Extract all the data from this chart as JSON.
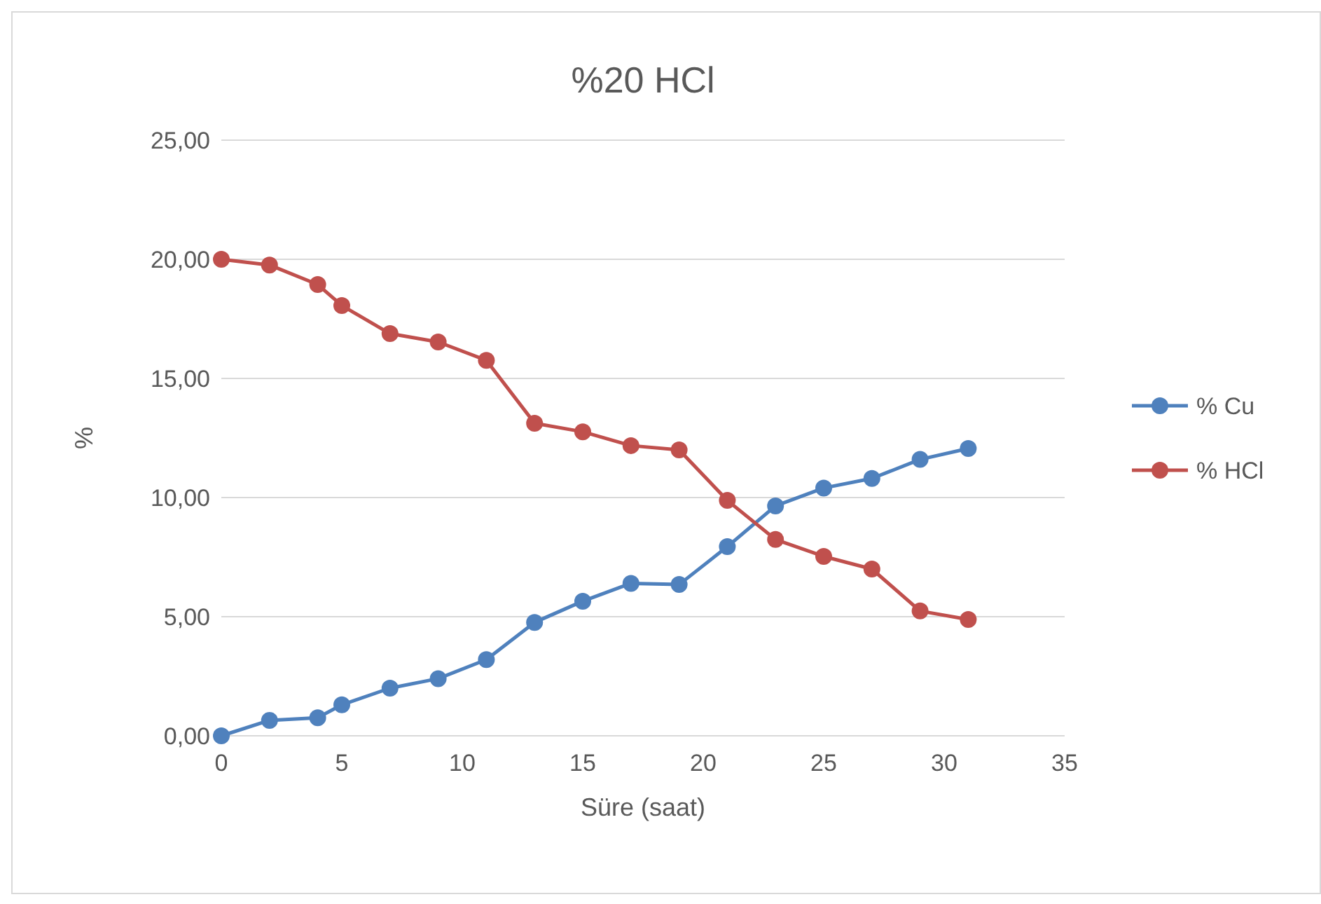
{
  "chart_data": {
    "type": "line",
    "title": "%20 HCl",
    "xlabel": "Süre (saat)",
    "ylabel": "%",
    "x": [
      0,
      2,
      4,
      5,
      7,
      9,
      11,
      13,
      15,
      17,
      19,
      21,
      23,
      25,
      27,
      29,
      31
    ],
    "series": [
      {
        "name": "% Cu",
        "color": "#4f81bd",
        "values": [
          0,
          0.65,
          0.76,
          1.3,
          2.0,
          2.4,
          3.2,
          4.76,
          5.65,
          6.4,
          6.35,
          7.94,
          9.65,
          10.4,
          10.8,
          11.6,
          12.06
        ]
      },
      {
        "name": "% HCl",
        "color": "#c0504d",
        "values": [
          20,
          19.76,
          18.94,
          18.06,
          16.88,
          16.53,
          15.76,
          13.12,
          12.76,
          12.18,
          12.0,
          9.88,
          8.24,
          7.53,
          7.0,
          5.24,
          4.88
        ]
      }
    ],
    "xlim": [
      0,
      35
    ],
    "xticks": [
      0,
      5,
      10,
      15,
      20,
      25,
      30,
      35
    ],
    "ylim": [
      0,
      25
    ],
    "yticks": [
      {
        "value": 0,
        "label": "0,00"
      },
      {
        "value": 5,
        "label": "5,00"
      },
      {
        "value": 10,
        "label": "10,00"
      },
      {
        "value": 15,
        "label": "15,00"
      },
      {
        "value": 20,
        "label": "20,00"
      },
      {
        "value": 25,
        "label": "25,00"
      }
    ],
    "grid": "y",
    "legend": "right",
    "marker": "circle",
    "line_style": "solid"
  }
}
